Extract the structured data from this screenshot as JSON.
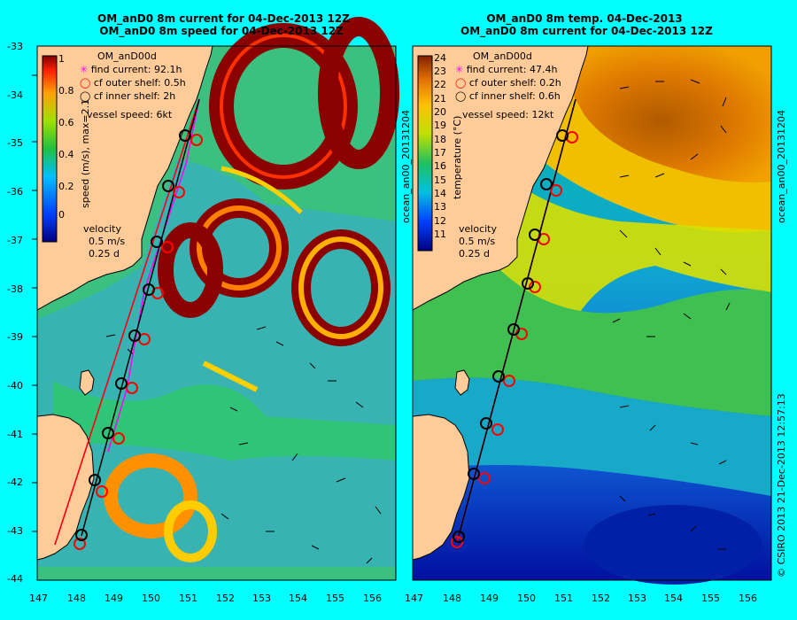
{
  "left_panel": {
    "title_line1": "OM_anD0 8m current for 04-Dec-2013 12Z",
    "title_line2": "OM_anD0 8m speed for 04-Dec-2013 12Z",
    "legend_title": "OM_anD00d",
    "find_current": "find current: 92.1h",
    "cf_outer": "cf outer shelf: 0.5h",
    "cf_inner": "cf inner shelf: 2h",
    "vessel_speed": "vessel speed: 6kt",
    "colorbar_label": "speed (m/s),  max=2.1",
    "colorbar_ticks": [
      "1",
      "0.8",
      "0.6",
      "0.4",
      "0.2",
      "0"
    ],
    "velocity_label": "velocity",
    "velocity_scale": "0.5 m/s",
    "velocity_time": "0.25 d"
  },
  "right_panel": {
    "title_line1": "OM_anD0 8m temp. 04-Dec-2013",
    "title_line2": "OM_anD0 8m current for 04-Dec-2013 12Z",
    "legend_title": "OM_anD00d",
    "find_current": "find current: 47.4h",
    "cf_outer": "cf outer shelf: 0.2h",
    "cf_inner": "cf inner shelf: 0.6h",
    "vessel_speed": "vessel speed: 12kt",
    "colorbar_label": "temperature (°C)",
    "colorbar_ticks": [
      "24",
      "23",
      "22",
      "21",
      "20",
      "19",
      "18",
      "17",
      "16",
      "15",
      "14",
      "13",
      "12",
      "11"
    ],
    "velocity_label": "velocity",
    "velocity_scale": "0.5 m/s",
    "velocity_time": "0.25 d"
  },
  "side_label": "ocean_an00_20131204",
  "footer_credit": "© CSIRO 2013   21-Dec-2013 12:57:13",
  "axes": {
    "lat_ticks": [
      "-33",
      "-34",
      "-35",
      "-36",
      "-37",
      "-38",
      "-39",
      "-40",
      "-41",
      "-42",
      "-43",
      "-44"
    ],
    "lon_ticks": [
      "147",
      "148",
      "149",
      "150",
      "151",
      "152",
      "153",
      "154",
      "155",
      "156"
    ]
  },
  "colors": {
    "background": "#00ffff",
    "land": "#ffcc99",
    "find_marker": "#ff00ff",
    "outer_marker": "#ff0000",
    "inner_marker": "#000000"
  }
}
